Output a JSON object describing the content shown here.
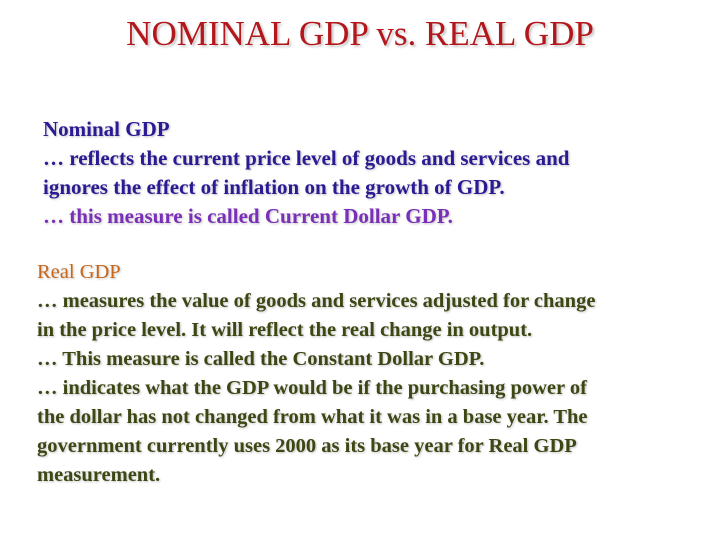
{
  "title": "NOMINAL GDP vs. REAL GDP",
  "nominal": {
    "heading": "Nominal GDP",
    "lines": [
      "… reflects the current price level of goods and services and",
      "ignores the effect of inflation on the growth of GDP.",
      "… this measure is called Current Dollar GDP."
    ]
  },
  "real": {
    "heading": "Real GDP",
    "lines": [
      "… measures the value of goods and services adjusted for change",
      "in the price level. It will reflect the real change in output.",
      "… This measure is called the Constant Dollar GDP.",
      "… indicates what the GDP would be if the purchasing power of",
      "the dollar has not changed from what it was in a base year. The",
      "government currently uses 2000 as its base year for Real GDP",
      "measurement."
    ]
  },
  "colors": {
    "title": "#b3161b",
    "nominal_text": "#2a1a93",
    "nominal_last_line": "#7a2fb8",
    "real_heading": "#c76518",
    "real_text": "#3c4713"
  }
}
